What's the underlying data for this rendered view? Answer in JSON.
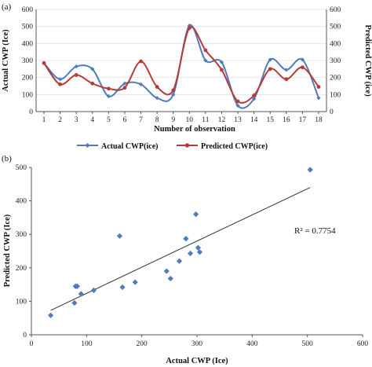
{
  "chart_data": [
    {
      "type": "line",
      "panel_label": "(a)",
      "xlabel": "Number of observation",
      "ylabel_left": "Actual CWP (Ice)",
      "ylabel_right": "Predicted CWP (ice)",
      "x": [
        1,
        2,
        3,
        4,
        5,
        6,
        7,
        8,
        9,
        10,
        11,
        12,
        13,
        14,
        15,
        16,
        17,
        18
      ],
      "ylim": [
        0,
        600
      ],
      "yticks": [
        0,
        100,
        200,
        300,
        400,
        500,
        600
      ],
      "series": [
        {
          "name": "Actual CWP(ice)",
          "color": "#4f7bbf",
          "values": [
            285,
            190,
            265,
            250,
            90,
            165,
            160,
            80,
            100,
            505,
            300,
            290,
            35,
            75,
            305,
            245,
            305,
            80
          ]
        },
        {
          "name": "Predicted CWP(ice)",
          "color": "#b83a35",
          "values": [
            285,
            160,
            215,
            165,
            135,
            140,
            295,
            145,
            125,
            490,
            360,
            245,
            60,
            95,
            250,
            190,
            260,
            145
          ]
        }
      ],
      "legend_position": "bottom"
    },
    {
      "type": "scatter",
      "panel_label": "(b)",
      "xlabel": "Actual  CWP (Ice)",
      "ylabel": "Predicted  CWP (Ice)",
      "xlim": [
        0,
        600
      ],
      "ylim": [
        0,
        500
      ],
      "xticks": [
        0,
        100,
        200,
        300,
        400,
        500,
        600
      ],
      "yticks": [
        0,
        100,
        200,
        300,
        400,
        500
      ],
      "marker_color": "#4f7bbf",
      "points": [
        [
          35,
          58
        ],
        [
          78,
          95
        ],
        [
          80,
          145
        ],
        [
          83,
          145
        ],
        [
          90,
          122
        ],
        [
          113,
          133
        ],
        [
          160,
          295
        ],
        [
          165,
          142
        ],
        [
          188,
          157
        ],
        [
          245,
          190
        ],
        [
          252,
          168
        ],
        [
          268,
          220
        ],
        [
          280,
          287
        ],
        [
          288,
          243
        ],
        [
          298,
          360
        ],
        [
          302,
          260
        ],
        [
          305,
          247
        ],
        [
          505,
          493
        ]
      ],
      "trendline": {
        "x": [
          35,
          505
        ],
        "y": [
          73,
          440
        ]
      },
      "annotation": "R² = 0.7754"
    }
  ]
}
